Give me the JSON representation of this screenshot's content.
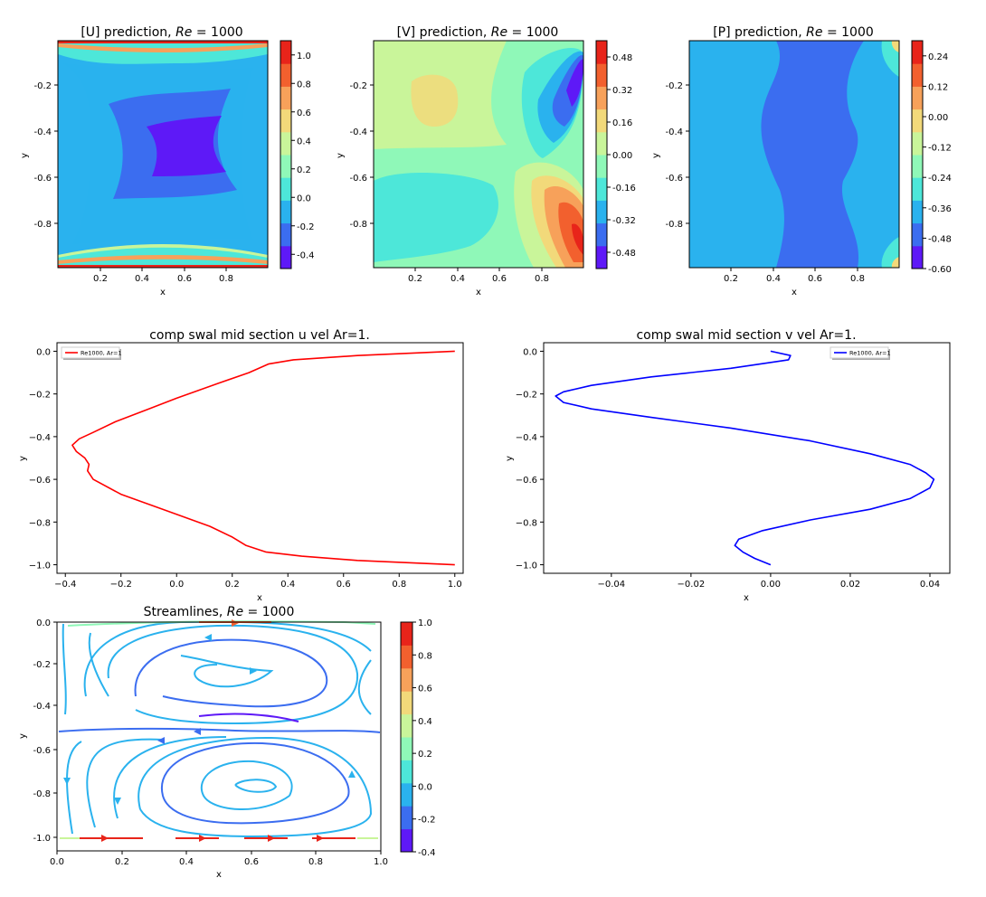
{
  "figure": {
    "colormap": [
      "#5e19f7",
      "#3b6df0",
      "#2ab2ee",
      "#4de7d9",
      "#8ff8b8",
      "#c9f59a",
      "#f2d97a",
      "#f7a15a",
      "#f2602e",
      "#e8241a"
    ],
    "axis_color": "#000000"
  },
  "chart_data": [
    {
      "id": "u_contour",
      "type": "heatmap",
      "title": "[U] prediction, ",
      "title_math": "Re",
      "title_tail": " = 1000",
      "xlabel": "x",
      "ylabel": "y",
      "xticks": [
        "0.2",
        "0.4",
        "0.6",
        "0.8"
      ],
      "yticks": [
        "-0.2",
        "-0.4",
        "-0.6",
        "-0.8"
      ],
      "colorbar_ticks": [
        "1.0",
        "0.8",
        "0.6",
        "0.4",
        "0.2",
        "0.0",
        "-0.2",
        "-0.4"
      ],
      "colorbar_range": [
        -0.5,
        1.1
      ],
      "xlim": [
        0,
        1
      ],
      "ylim": [
        -1,
        0
      ]
    },
    {
      "id": "v_contour",
      "type": "heatmap",
      "title": "[V] prediction, ",
      "title_math": "Re",
      "title_tail": " = 1000",
      "xlabel": "x",
      "ylabel": "y",
      "xticks": [
        "0.2",
        "0.4",
        "0.6",
        "0.8"
      ],
      "yticks": [
        "-0.2",
        "-0.4",
        "-0.6",
        "-0.8"
      ],
      "colorbar_ticks": [
        "0.48",
        "0.32",
        "0.16",
        "0.00",
        "-0.16",
        "-0.32",
        "-0.48"
      ],
      "colorbar_range": [
        -0.56,
        0.56
      ],
      "xlim": [
        0,
        1
      ],
      "ylim": [
        -1,
        0
      ]
    },
    {
      "id": "p_contour",
      "type": "heatmap",
      "title": "[P] prediction, ",
      "title_math": "Re",
      "title_tail": " = 1000",
      "xlabel": "x",
      "ylabel": "y",
      "xticks": [
        "0.2",
        "0.4",
        "0.6",
        "0.8"
      ],
      "yticks": [
        "-0.2",
        "-0.4",
        "-0.6",
        "-0.8"
      ],
      "colorbar_ticks": [
        "0.24",
        "0.12",
        "0.00",
        "-0.12",
        "-0.24",
        "-0.36",
        "-0.48",
        "-0.60"
      ],
      "colorbar_range": [
        -0.6,
        0.3
      ],
      "xlim": [
        0,
        1
      ],
      "ylim": [
        -1,
        0
      ]
    },
    {
      "id": "u_midsection",
      "type": "line",
      "title": "comp swal  mid section u vel Ar=1.",
      "xlabel": "x",
      "ylabel": "y",
      "xlim": [
        -0.43,
        1.03
      ],
      "ylim": [
        -1.04,
        0.04
      ],
      "xticks": [
        -0.4,
        -0.2,
        0.0,
        0.2,
        0.4,
        0.6,
        0.8,
        1.0
      ],
      "yticks": [
        0.0,
        -0.2,
        -0.4,
        -0.6,
        -0.8,
        -1.0
      ],
      "legend": "top-left",
      "series": [
        {
          "name": "Re1000, Ar=1",
          "color": "#ff0000",
          "x": [
            1.0,
            0.65,
            0.42,
            0.33,
            0.26,
            0.15,
            0.0,
            -0.1,
            -0.22,
            -0.3,
            -0.35,
            -0.375,
            -0.36,
            -0.33,
            -0.315,
            -0.32,
            -0.3,
            -0.2,
            -0.05,
            0.12,
            0.2,
            0.25,
            0.32,
            0.45,
            0.65,
            1.0
          ],
          "y": [
            0.0,
            -0.02,
            -0.04,
            -0.06,
            -0.1,
            -0.15,
            -0.22,
            -0.27,
            -0.33,
            -0.38,
            -0.41,
            -0.44,
            -0.47,
            -0.5,
            -0.53,
            -0.56,
            -0.6,
            -0.67,
            -0.74,
            -0.82,
            -0.87,
            -0.91,
            -0.94,
            -0.96,
            -0.98,
            -1.0
          ]
        }
      ]
    },
    {
      "id": "v_midsection",
      "type": "line",
      "title": "comp swal  mid section v vel Ar=1.",
      "xlabel": "x",
      "ylabel": "y",
      "xlim": [
        -0.057,
        0.045
      ],
      "ylim": [
        -1.04,
        0.04
      ],
      "xticks": [
        -0.04,
        -0.02,
        0.0,
        0.02,
        0.04
      ],
      "yticks": [
        0.0,
        -0.2,
        -0.4,
        -0.6,
        -0.8,
        -1.0
      ],
      "legend": "top-right",
      "series": [
        {
          "name": "Re1000, Ar=1",
          "color": "#0000ff",
          "x": [
            0.0,
            0.005,
            0.0045,
            -0.01,
            -0.03,
            -0.045,
            -0.052,
            -0.054,
            -0.052,
            -0.045,
            -0.03,
            -0.01,
            0.01,
            0.025,
            0.035,
            0.039,
            0.041,
            0.04,
            0.035,
            0.025,
            0.01,
            -0.002,
            -0.008,
            -0.009,
            -0.007,
            -0.004,
            0.0
          ],
          "y": [
            0.0,
            -0.02,
            -0.04,
            -0.08,
            -0.12,
            -0.16,
            -0.19,
            -0.21,
            -0.24,
            -0.27,
            -0.31,
            -0.36,
            -0.42,
            -0.48,
            -0.53,
            -0.57,
            -0.6,
            -0.64,
            -0.69,
            -0.74,
            -0.79,
            -0.84,
            -0.88,
            -0.91,
            -0.94,
            -0.97,
            -1.0
          ]
        }
      ]
    },
    {
      "id": "streamlines",
      "type": "line",
      "title": "Streamlines, ",
      "title_math": "Re",
      "title_tail": " = 1000",
      "xlabel": "x",
      "ylabel": "y",
      "xlim": [
        0.0,
        1.0
      ],
      "ylim": [
        -1.0,
        0.0
      ],
      "xticks": [
        "0.0",
        "0.2",
        "0.4",
        "0.6",
        "0.8",
        "1.0"
      ],
      "yticks": [
        "0.0",
        "-0.2",
        "-0.4",
        "-0.6",
        "-0.8",
        "-1.0"
      ],
      "colorbar_ticks": [
        "1.0",
        "0.8",
        "0.6",
        "0.4",
        "0.2",
        "0.0",
        "-0.2",
        "-0.4"
      ],
      "colorbar_range": [
        -0.4,
        1.0
      ]
    }
  ]
}
